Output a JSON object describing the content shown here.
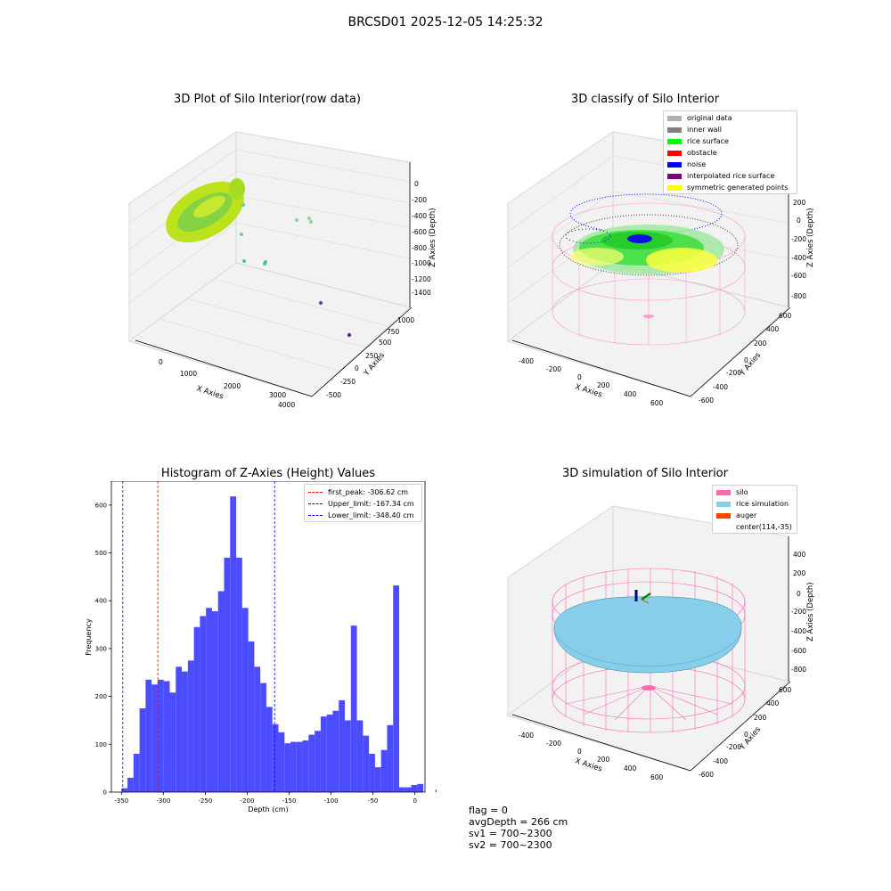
{
  "figure": {
    "suptitle": "BRCSD01 2025-12-05 14:25:32",
    "footer": {
      "flag": "flag = 0",
      "avg_depth": "avgDepth = 266 cm",
      "sv1": "sv1 = 700~2300",
      "sv2": "sv2 = 700~2300"
    }
  },
  "panels": {
    "raw": {
      "title": "3D Plot of Silo Interior(row data)",
      "xlabel": "X Axies",
      "ylabel": "Y Axies",
      "zlabel": "Z Axies (Depth)",
      "x_ticks": [
        "0",
        "1000",
        "2000",
        "3000",
        "4000"
      ],
      "y_ticks": [
        "-500",
        "-250",
        "0",
        "250",
        "500",
        "750",
        "1000"
      ],
      "z_ticks": [
        "0",
        "-200",
        "-400",
        "-600",
        "-800",
        "-1000",
        "-1200",
        "-1400"
      ]
    },
    "classify": {
      "title": "3D classify of Silo Interior",
      "xlabel": "X Axies",
      "ylabel": "Y Axies",
      "zlabel": "Z Axies (Depth)",
      "x_ticks": [
        "-400",
        "-200",
        "0",
        "200",
        "400",
        "600"
      ],
      "y_ticks": [
        "-600",
        "-400",
        "-200",
        "0",
        "200",
        "400",
        "600"
      ],
      "z_ticks": [
        "200",
        "0",
        "-200",
        "-400",
        "-600",
        "-800"
      ],
      "legend": [
        {
          "label": "original data",
          "color": "#b0b0b0"
        },
        {
          "label": "inner wall",
          "color": "#808080"
        },
        {
          "label": "rice surface",
          "color": "#00ff00"
        },
        {
          "label": "obstacle",
          "color": "#ff0000"
        },
        {
          "label": "noise",
          "color": "#0000ff"
        },
        {
          "label": "interpolated rice surface",
          "color": "#800080"
        },
        {
          "label": "symmetric generated points",
          "color": "#ffff00"
        }
      ]
    },
    "simulation": {
      "title": "3D simulation of Silo Interior",
      "xlabel": "X Axies",
      "ylabel": "Y Axies",
      "zlabel": "Z Axies (Depth)",
      "x_ticks": [
        "-400",
        "-200",
        "0",
        "200",
        "400",
        "600"
      ],
      "y_ticks": [
        "-600",
        "-400",
        "-200",
        "0",
        "200",
        "400",
        "600"
      ],
      "z_ticks": [
        "400",
        "200",
        "0",
        "-200",
        "-400",
        "-600",
        "-800"
      ],
      "legend": [
        {
          "label": "silo",
          "color": "#ff69b4"
        },
        {
          "label": "rice simulation",
          "color": "#87ceeb"
        },
        {
          "label": "auger",
          "color": "#ff4500"
        },
        {
          "label": "center(114,-35)",
          "color": ""
        }
      ]
    }
  },
  "chart_data": {
    "type": "bar",
    "title": "Histogram of Z-Axies (Height) Values",
    "xlabel": "Depth (cm)",
    "ylabel": "Frequency",
    "xlim": [
      -362,
      12
    ],
    "ylim": [
      0,
      650
    ],
    "x_ticks": [
      -350,
      -300,
      -250,
      -200,
      -150,
      -100,
      -50,
      0
    ],
    "y_ticks": [
      0,
      100,
      200,
      300,
      400,
      500,
      600
    ],
    "bar_color": "#4c4cff",
    "bin_width": 7.2,
    "bins_start": -350,
    "values": [
      8,
      30,
      80,
      175,
      235,
      225,
      235,
      232,
      208,
      262,
      252,
      275,
      345,
      368,
      385,
      378,
      420,
      490,
      618,
      490,
      385,
      315,
      262,
      228,
      178,
      142,
      125,
      102,
      105,
      105,
      108,
      120,
      128,
      158,
      162,
      170,
      192,
      150,
      348,
      150,
      118,
      80,
      52,
      88,
      140,
      432,
      10,
      10,
      15,
      17,
      0,
      0,
      5
    ],
    "vlines": [
      {
        "label": "first_peak: -306.62 cm",
        "x": -306.62,
        "color": "#ff0000"
      },
      {
        "label": "Upper_limit: -167.34 cm",
        "x": -167.34,
        "color": "#0000ff"
      },
      {
        "label": "Lower_limit: -348.40 cm",
        "x": -348.4,
        "color": "#0000ff"
      }
    ],
    "legend_position": "upper-right"
  }
}
